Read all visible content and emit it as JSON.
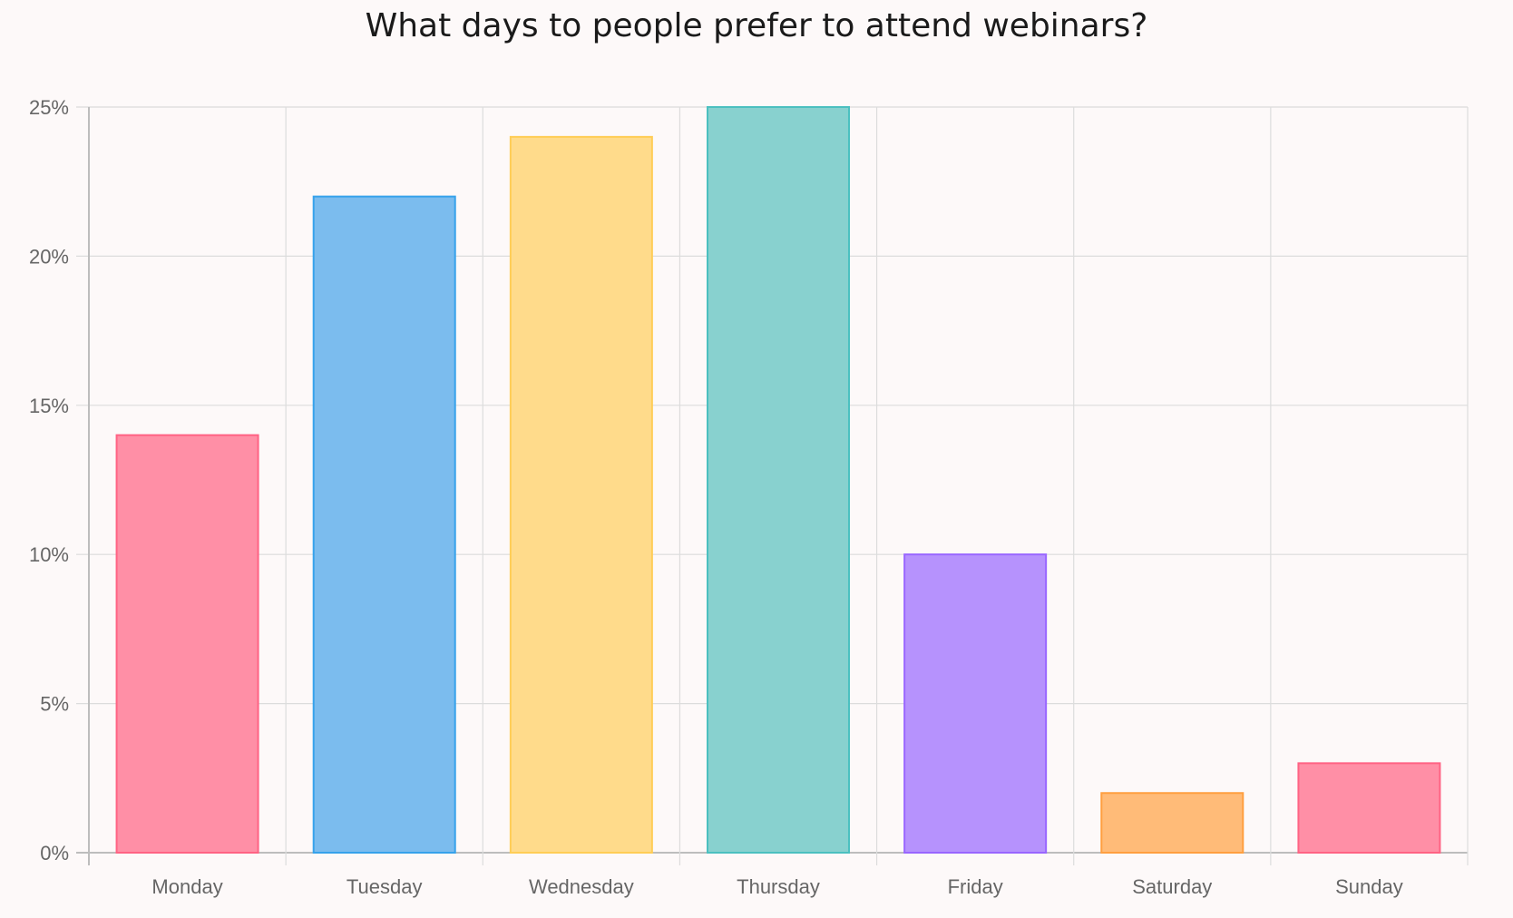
{
  "chart_data": {
    "type": "bar",
    "title": "What days to people prefer to attend webinars?",
    "xlabel": "",
    "ylabel": "",
    "ylim": [
      0,
      25
    ],
    "yticks": [
      0,
      5,
      10,
      15,
      20,
      25
    ],
    "ytick_labels": [
      "0%",
      "5%",
      "10%",
      "15%",
      "20%",
      "25%"
    ],
    "categories": [
      "Monday",
      "Tuesday",
      "Wednesday",
      "Thursday",
      "Friday",
      "Saturday",
      "Sunday"
    ],
    "values": [
      14,
      22,
      24,
      25,
      10,
      2,
      3
    ],
    "grid": true,
    "legend": "none",
    "colors": {
      "fill": [
        "#ff8fa6",
        "#7bbcee",
        "#ffdb8b",
        "#88d1cf",
        "#b692fd",
        "#ffbb78",
        "#ff8fa6"
      ],
      "stroke": [
        "#ff6384",
        "#36a2eb",
        "#ffcd56",
        "#4bc0c0",
        "#9966ff",
        "#ff9f40",
        "#ff6384"
      ],
      "grid": "#dcdcdc",
      "tick_text": "#666666",
      "background": "#fdf9f9"
    }
  }
}
